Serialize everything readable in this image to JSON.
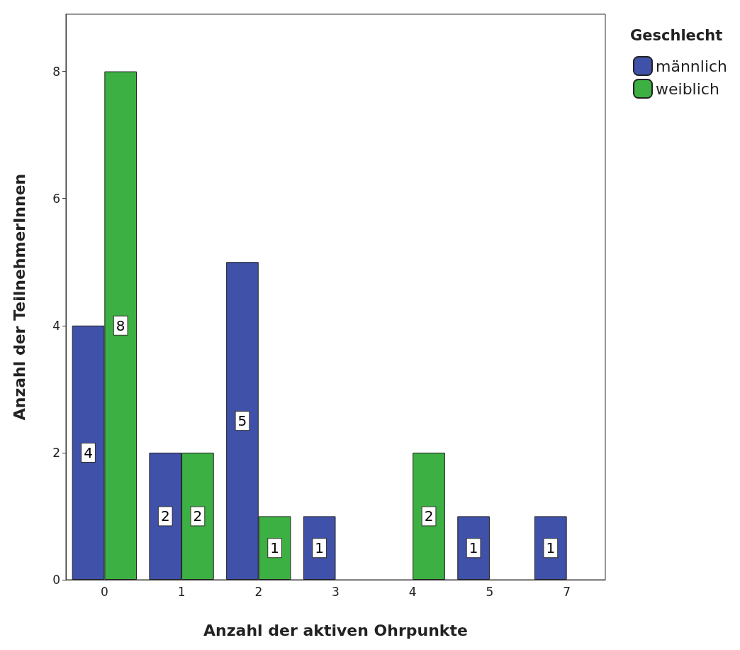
{
  "chart_data": {
    "type": "bar",
    "xlabel": "Anzahl der aktiven Ohrpunkte",
    "ylabel": "Anzahl der TeilnehmerInnen",
    "legend_title": "Geschlecht",
    "legend": "top right",
    "grid": false,
    "data_labels": true,
    "categories": [
      "0",
      "1",
      "2",
      "3",
      "4",
      "5",
      "7"
    ],
    "series": [
      {
        "name": "männlich",
        "color": "#3f51a8",
        "values": [
          4,
          2,
          5,
          1,
          null,
          1,
          1
        ]
      },
      {
        "name": "weiblich",
        "color": "#3cb043",
        "values": [
          8,
          2,
          1,
          null,
          2,
          null,
          null
        ]
      }
    ],
    "ylim": [
      0,
      8.9
    ],
    "yticks": [
      0,
      2,
      4,
      6,
      8
    ]
  }
}
